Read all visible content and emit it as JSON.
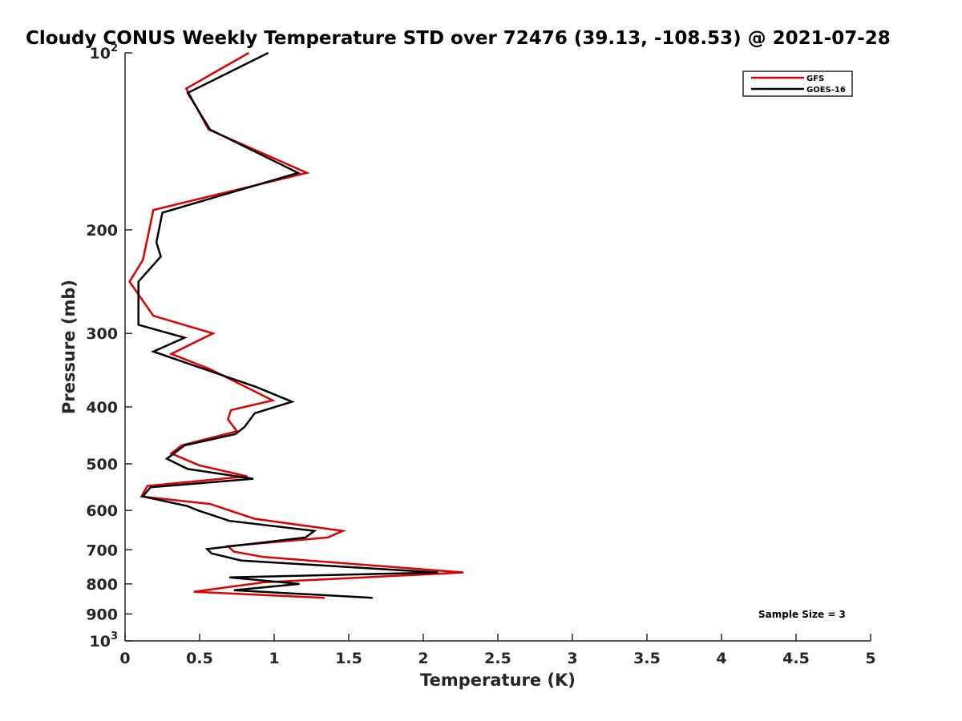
{
  "chart_data": {
    "type": "line",
    "title": "Cloudy CONUS Weekly Temperature STD over 72476 (39.13, -108.53) @ 2021-07-28",
    "xlabel": "Temperature (K)",
    "ylabel": "Pressure (mb)",
    "xlim": [
      0,
      5
    ],
    "ylim": [
      100,
      1000
    ],
    "y_scale": "log",
    "y_reversed": true,
    "x_ticks": [
      "0",
      "0.5",
      "1",
      "1.5",
      "2",
      "2.5",
      "3",
      "3.5",
      "4",
      "4.5",
      "5"
    ],
    "y_ticks": [
      {
        "value": 100,
        "base": "10",
        "exp": "2"
      },
      {
        "value": 200,
        "label": "200"
      },
      {
        "value": 300,
        "label": "300"
      },
      {
        "value": 400,
        "label": "400"
      },
      {
        "value": 500,
        "label": "500"
      },
      {
        "value": 600,
        "label": "600"
      },
      {
        "value": 700,
        "label": "700"
      },
      {
        "value": 800,
        "label": "800"
      },
      {
        "value": 900,
        "label": "900"
      },
      {
        "value": 1000,
        "base": "10",
        "exp": "3"
      }
    ],
    "grid": false,
    "legend_position": "top-right",
    "annotation": "Sample Size = 3",
    "series": [
      {
        "name": "GFS",
        "color": "#dd0000",
        "points": [
          [
            0.83,
            100
          ],
          [
            0.41,
            115
          ],
          [
            0.56,
            135
          ],
          [
            1.22,
            160
          ],
          [
            0.19,
            185
          ],
          [
            0.12,
            225
          ],
          [
            0.03,
            245
          ],
          [
            0.19,
            280
          ],
          [
            0.59,
            300
          ],
          [
            0.31,
            325
          ],
          [
            0.57,
            345
          ],
          [
            0.99,
            390
          ],
          [
            0.71,
            405
          ],
          [
            0.69,
            420
          ],
          [
            0.75,
            440
          ],
          [
            0.38,
            465
          ],
          [
            0.31,
            480
          ],
          [
            0.5,
            503
          ],
          [
            0.82,
            525
          ],
          [
            0.15,
            545
          ],
          [
            0.11,
            568
          ],
          [
            0.57,
            585
          ],
          [
            0.87,
            620
          ],
          [
            1.46,
            650
          ],
          [
            1.36,
            667
          ],
          [
            0.69,
            690
          ],
          [
            0.73,
            705
          ],
          [
            0.93,
            720
          ],
          [
            2.27,
            765
          ],
          [
            0.93,
            795
          ],
          [
            0.46,
            825
          ],
          [
            1.34,
            845
          ]
        ]
      },
      {
        "name": "GOES-16",
        "color": "#000000",
        "points": [
          [
            0.96,
            100
          ],
          [
            0.42,
            117
          ],
          [
            0.57,
            135
          ],
          [
            1.16,
            160
          ],
          [
            0.25,
            187
          ],
          [
            0.21,
            210
          ],
          [
            0.24,
            222
          ],
          [
            0.09,
            245
          ],
          [
            0.09,
            290
          ],
          [
            0.4,
            305
          ],
          [
            0.19,
            322
          ],
          [
            0.88,
            370
          ],
          [
            1.12,
            392
          ],
          [
            0.87,
            410
          ],
          [
            0.8,
            433
          ],
          [
            0.74,
            445
          ],
          [
            0.4,
            465
          ],
          [
            0.28,
            490
          ],
          [
            0.42,
            510
          ],
          [
            0.86,
            530
          ],
          [
            0.17,
            548
          ],
          [
            0.12,
            568
          ],
          [
            0.42,
            590
          ],
          [
            0.49,
            600
          ],
          [
            0.7,
            625
          ],
          [
            1.27,
            650
          ],
          [
            1.21,
            667
          ],
          [
            0.55,
            698
          ],
          [
            0.58,
            710
          ],
          [
            0.78,
            730
          ],
          [
            2.1,
            765
          ],
          [
            0.7,
            780
          ],
          [
            1.17,
            800
          ],
          [
            0.73,
            820
          ],
          [
            1.66,
            845
          ]
        ]
      }
    ]
  }
}
